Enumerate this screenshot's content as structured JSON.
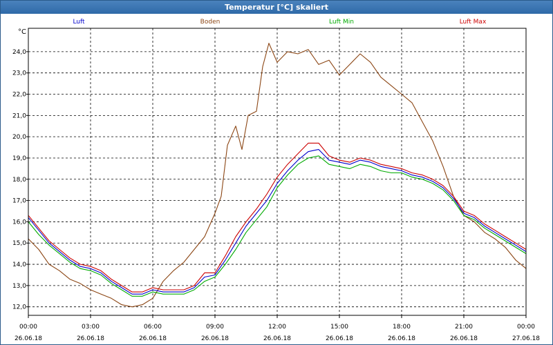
{
  "window": {
    "title": "Temperatur [°C] skaliert"
  },
  "chart_data": {
    "type": "line",
    "title": "Temperatur [°C] skaliert",
    "ylabel": "°C",
    "xlabel": "",
    "x_unit": "hours since 26.06.18 00:00",
    "xlim": [
      0,
      24
    ],
    "ylim": [
      11.6,
      25.1
    ],
    "grid": true,
    "legend_position": "top",
    "y_ticks": [
      12.0,
      13.0,
      14.0,
      15.0,
      16.0,
      17.0,
      18.0,
      19.0,
      20.0,
      21.0,
      22.0,
      23.0,
      24.0
    ],
    "y_tick_labels": [
      "12,0",
      "13,0",
      "14,0",
      "15,0",
      "16,0",
      "17,0",
      "18,0",
      "19,0",
      "20,0",
      "21,0",
      "22,0",
      "23,0",
      "24,0"
    ],
    "x_ticks": [
      0,
      3,
      6,
      9,
      12,
      15,
      18,
      21,
      24
    ],
    "x_tick_times": [
      "00:00",
      "03:00",
      "06:00",
      "09:00",
      "12:00",
      "15:00",
      "18:00",
      "21:00",
      "00:00"
    ],
    "x_tick_dates": [
      "26.06.18",
      "26.06.18",
      "26.06.18",
      "26.06.18",
      "26.06.18",
      "26.06.18",
      "26.06.18",
      "26.06.18",
      "27.06.18"
    ],
    "series": [
      {
        "name": "Luft",
        "color": "#0000cc",
        "x": [
          0,
          0.5,
          1,
          1.5,
          2,
          2.5,
          3,
          3.5,
          4,
          4.5,
          5,
          5.5,
          6,
          6.5,
          7,
          7.5,
          8,
          8.5,
          9,
          9.5,
          10,
          10.5,
          11,
          11.5,
          12,
          12.5,
          13,
          13.5,
          14,
          14.5,
          15,
          15.5,
          16,
          16.5,
          17,
          17.5,
          18,
          18.5,
          19,
          19.5,
          20,
          20.5,
          21,
          21.5,
          22,
          22.5,
          23,
          23.5,
          24
        ],
        "values": [
          16.2,
          15.6,
          15.0,
          14.6,
          14.2,
          13.9,
          13.8,
          13.6,
          13.2,
          12.9,
          12.6,
          12.6,
          12.8,
          12.7,
          12.7,
          12.7,
          12.9,
          13.4,
          13.5,
          14.2,
          15.0,
          15.8,
          16.4,
          17.0,
          17.8,
          18.4,
          18.9,
          19.3,
          19.4,
          18.9,
          18.8,
          18.7,
          18.9,
          18.8,
          18.6,
          18.5,
          18.4,
          18.2,
          18.1,
          17.9,
          17.6,
          17.1,
          16.4,
          16.2,
          15.8,
          15.5,
          15.2,
          14.9,
          14.6
        ]
      },
      {
        "name": "Boden",
        "color": "#8b4513",
        "x": [
          0,
          0.5,
          1,
          1.5,
          2,
          2.5,
          3,
          3.5,
          4,
          4.5,
          5,
          5.5,
          6,
          6.5,
          7,
          7.5,
          8,
          8.5,
          9,
          9.3,
          9.6,
          10,
          10.3,
          10.6,
          11,
          11.3,
          11.6,
          12,
          12.5,
          13,
          13.5,
          14,
          14.5,
          15,
          15.5,
          16,
          16.5,
          17,
          17.5,
          18,
          18.5,
          19,
          19.5,
          20,
          20.5,
          21,
          21.5,
          22,
          22.5,
          23,
          23.5,
          24
        ],
        "values": [
          15.2,
          14.7,
          14.0,
          13.7,
          13.3,
          13.1,
          12.8,
          12.6,
          12.4,
          12.1,
          12.0,
          12.1,
          12.4,
          13.2,
          13.7,
          14.1,
          14.7,
          15.3,
          16.4,
          17.2,
          19.6,
          20.5,
          19.4,
          21.0,
          21.2,
          23.3,
          24.4,
          23.5,
          24.0,
          23.9,
          24.1,
          23.4,
          23.6,
          22.9,
          23.4,
          23.9,
          23.5,
          22.8,
          22.4,
          22.0,
          21.6,
          20.7,
          19.8,
          18.6,
          17.2,
          16.3,
          16.0,
          15.5,
          15.2,
          14.8,
          14.2,
          13.8
        ]
      },
      {
        "name": "Luft Min",
        "color": "#00aa00",
        "x": [
          0,
          0.5,
          1,
          1.5,
          2,
          2.5,
          3,
          3.5,
          4,
          4.5,
          5,
          5.5,
          6,
          6.5,
          7,
          7.5,
          8,
          8.5,
          9,
          9.5,
          10,
          10.5,
          11,
          11.5,
          12,
          12.5,
          13,
          13.5,
          14,
          14.5,
          15,
          15.5,
          16,
          16.5,
          17,
          17.5,
          18,
          18.5,
          19,
          19.5,
          20,
          20.5,
          21,
          21.5,
          22,
          22.5,
          23,
          23.5,
          24
        ],
        "values": [
          16.0,
          15.4,
          14.9,
          14.5,
          14.1,
          13.8,
          13.7,
          13.5,
          13.1,
          12.8,
          12.5,
          12.5,
          12.7,
          12.6,
          12.6,
          12.6,
          12.8,
          13.2,
          13.4,
          14.0,
          14.7,
          15.5,
          16.1,
          16.7,
          17.6,
          18.2,
          18.7,
          19.0,
          19.1,
          18.7,
          18.6,
          18.5,
          18.7,
          18.6,
          18.4,
          18.3,
          18.3,
          18.1,
          18.0,
          17.8,
          17.5,
          17.0,
          16.3,
          16.1,
          15.7,
          15.4,
          15.1,
          14.8,
          14.5
        ]
      },
      {
        "name": "Luft Max",
        "color": "#cc0000",
        "x": [
          0,
          0.5,
          1,
          1.5,
          2,
          2.5,
          3,
          3.5,
          4,
          4.5,
          5,
          5.5,
          6,
          6.5,
          7,
          7.5,
          8,
          8.5,
          9,
          9.5,
          10,
          10.5,
          11,
          11.5,
          12,
          12.5,
          13,
          13.5,
          14,
          14.5,
          15,
          15.5,
          16,
          16.5,
          17,
          17.5,
          18,
          18.5,
          19,
          19.5,
          20,
          20.5,
          21,
          21.5,
          22,
          22.5,
          23,
          23.5,
          24
        ],
        "values": [
          16.3,
          15.7,
          15.1,
          14.7,
          14.3,
          14.0,
          13.9,
          13.7,
          13.3,
          13.0,
          12.7,
          12.7,
          12.9,
          12.8,
          12.8,
          12.8,
          13.0,
          13.6,
          13.6,
          14.4,
          15.3,
          16.0,
          16.6,
          17.3,
          18.1,
          18.7,
          19.2,
          19.7,
          19.7,
          19.1,
          18.9,
          18.8,
          19.0,
          18.9,
          18.7,
          18.6,
          18.5,
          18.3,
          18.2,
          18.0,
          17.7,
          17.2,
          16.5,
          16.3,
          15.9,
          15.6,
          15.3,
          15.0,
          14.7
        ]
      }
    ]
  }
}
